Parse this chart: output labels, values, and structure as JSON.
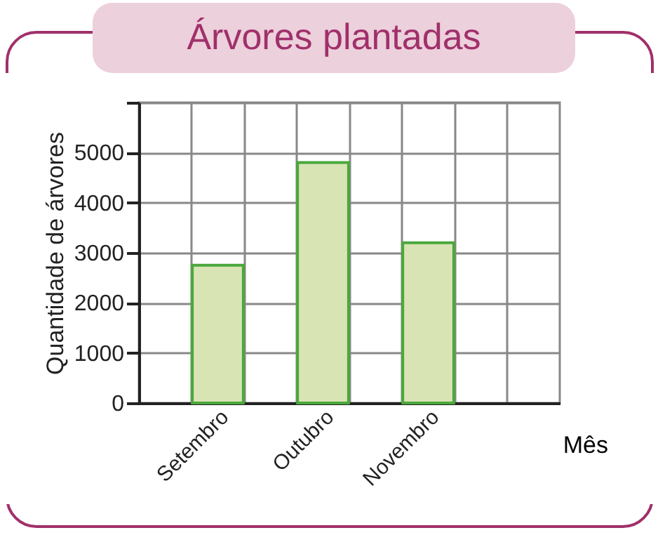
{
  "chart_data": {
    "type": "bar",
    "title": "Árvores plantadas",
    "xlabel": "Mês",
    "ylabel": "Quantidade de árvores",
    "categories": [
      null,
      "Setembro",
      null,
      "Outubro",
      null,
      "Novembro",
      null,
      null
    ],
    "values": [
      null,
      2750,
      null,
      4800,
      null,
      3200,
      null,
      null
    ],
    "color": "#d9e4b5",
    "ylim": [
      0,
      6000
    ],
    "yticks": [
      0,
      1000,
      2000,
      3000,
      4000,
      5000,
      {
        "value": 6000,
        "label": null
      }
    ],
    "grid": true
  }
}
